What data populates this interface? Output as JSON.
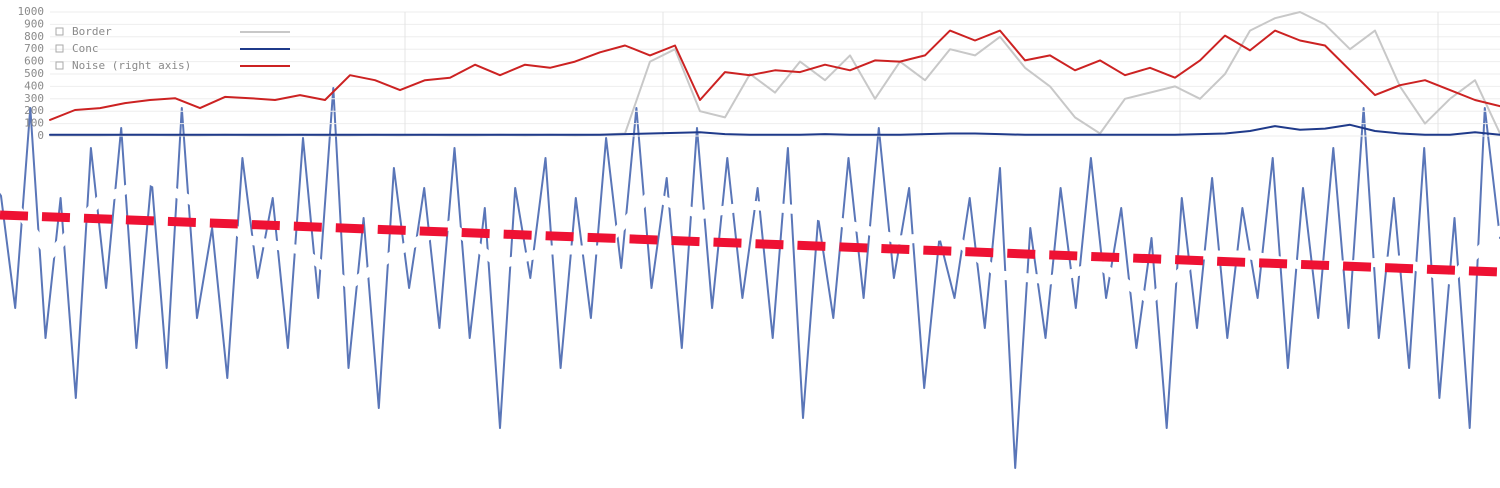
{
  "chart_data": [
    {
      "type": "line",
      "series": [
        {
          "color": "#5a76b8",
          "width": 2,
          "values": [
            300,
            180,
            380,
            150,
            290,
            90,
            340,
            200,
            360,
            140,
            310,
            120,
            380,
            170,
            260,
            110,
            330,
            210,
            290,
            140,
            350,
            190,
            400,
            120,
            270,
            80,
            320,
            200,
            300,
            160,
            340,
            150,
            280,
            60,
            300,
            210,
            330,
            120,
            290,
            170,
            350,
            220,
            380,
            200,
            310,
            140,
            360,
            180,
            330,
            190,
            300,
            150,
            340,
            70,
            270,
            170,
            330,
            190,
            360,
            210,
            300,
            100,
            250,
            190,
            290,
            160,
            320,
            20,
            260,
            150,
            300,
            180,
            330,
            190,
            280,
            140,
            250,
            60,
            290,
            160,
            310,
            150,
            280,
            190,
            330,
            120,
            300,
            170,
            340,
            160,
            380,
            150,
            290,
            120,
            340,
            90,
            270,
            60,
            380,
            250
          ]
        },
        {
          "color": "#ffffff",
          "width": 9,
          "values": [
            303,
            233,
            288,
            308,
            283,
            248,
            238,
            203,
            238,
            263,
            223,
            238,
            238,
            293,
            273,
            283,
            278,
            263,
            248,
            253,
            213,
            208,
            223,
            188,
            233,
            233,
            223,
            223,
            228,
            208,
            258
          ]
        },
        {
          "color": "#ee1133",
          "width": 9,
          "dashed": true,
          "values": [
            273,
            216
          ]
        }
      ],
      "ylim": [
        0,
        488
      ]
    },
    {
      "type": "line",
      "series": [
        {
          "name": "Border",
          "color": "#c8c8c8",
          "values": [
            5,
            5,
            5,
            10,
            10,
            5,
            5,
            10,
            5,
            5,
            10,
            5,
            5,
            10,
            5,
            10,
            5,
            5,
            10,
            5,
            10,
            5,
            10,
            20,
            600,
            700,
            200,
            150,
            500,
            350,
            600,
            450,
            650,
            300,
            600,
            450,
            700,
            650,
            800,
            550,
            400,
            150,
            20,
            300,
            350,
            400,
            300,
            500,
            850,
            950,
            1000,
            900,
            700,
            850,
            400,
            100,
            300,
            450,
            20
          ]
        },
        {
          "name": "Conc",
          "color": "#1f3a8a",
          "values": [
            10,
            10,
            10,
            10,
            10,
            10,
            10,
            10,
            10,
            10,
            10,
            10,
            10,
            10,
            10,
            10,
            10,
            10,
            10,
            10,
            10,
            10,
            10,
            15,
            20,
            25,
            30,
            15,
            10,
            10,
            10,
            15,
            10,
            10,
            10,
            15,
            20,
            20,
            15,
            10,
            10,
            10,
            10,
            10,
            10,
            10,
            15,
            20,
            40,
            80,
            50,
            60,
            90,
            40,
            20,
            10,
            10,
            30,
            10
          ]
        },
        {
          "name": "Noise (right axis)",
          "color": "#cc2222",
          "axis": "y2",
          "values": [
            130,
            210,
            225,
            265,
            290,
            305,
            225,
            315,
            305,
            290,
            330,
            290,
            490,
            450,
            370,
            450,
            470,
            575,
            490,
            575,
            550,
            600,
            675,
            730,
            650,
            730,
            290,
            515,
            490,
            530,
            515,
            575,
            530,
            610,
            600,
            650,
            850,
            770,
            850,
            610,
            650,
            530,
            610,
            490,
            550,
            470,
            610,
            810,
            690,
            850,
            770,
            730,
            530,
            330,
            410,
            450,
            370,
            290,
            240
          ]
        }
      ],
      "ylim": [
        0,
        1000
      ],
      "y2lim": [
        0,
        1000
      ],
      "yticks": [
        1000,
        900,
        800,
        700,
        600,
        500,
        400,
        300,
        200,
        100,
        0
      ],
      "grid": true
    }
  ]
}
